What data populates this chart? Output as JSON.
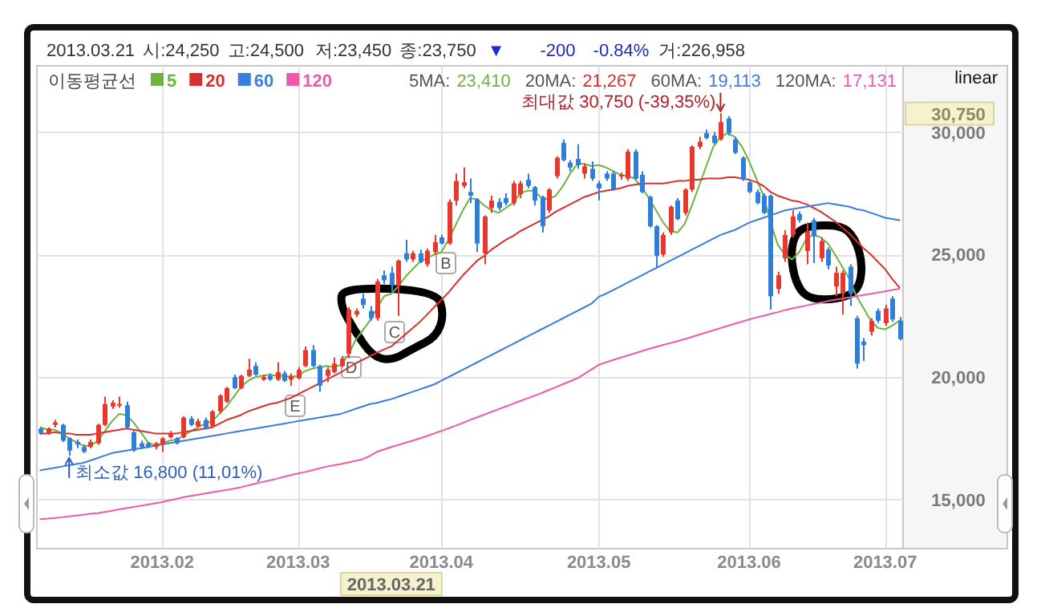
{
  "chart_data": {
    "type": "candlestick",
    "categories": [
      null,
      null,
      null,
      null,
      null,
      null,
      null,
      null,
      null,
      null,
      null,
      null,
      null,
      null,
      null,
      null,
      null,
      "2013.02",
      null,
      null,
      null,
      null,
      null,
      null,
      null,
      null,
      null,
      null,
      null,
      null,
      null,
      null,
      null,
      null,
      null,
      null,
      "2013.03",
      null,
      null,
      null,
      null,
      null,
      null,
      null,
      null,
      null,
      null,
      null,
      null,
      "2013.03.21",
      null,
      null,
      null,
      null,
      null,
      null,
      "2013.04",
      null,
      null,
      null,
      null,
      null,
      null,
      null,
      null,
      null,
      null,
      null,
      null,
      null,
      null,
      null,
      null,
      null,
      null,
      null,
      null,
      null,
      "2013.05",
      null,
      null,
      null,
      null,
      null,
      null,
      null,
      null,
      null,
      null,
      null,
      null,
      null,
      null,
      null,
      null,
      null,
      null,
      null,
      null,
      "2013.06",
      null,
      null,
      null,
      null,
      null,
      null,
      null,
      null,
      null,
      null,
      null,
      null,
      null,
      null,
      null,
      null,
      null,
      null,
      "2013.07",
      null,
      null
    ],
    "ohlc": [
      [
        17900,
        17950,
        17650,
        17700
      ],
      [
        17700,
        17950,
        17650,
        17900
      ],
      [
        18050,
        18250,
        17950,
        18150
      ],
      [
        18050,
        18100,
        17350,
        17400
      ],
      [
        17500,
        17550,
        16800,
        17000
      ],
      [
        17350,
        17450,
        17100,
        17250
      ],
      [
        17150,
        17250,
        16900,
        16950
      ],
      [
        17150,
        17450,
        17100,
        17350
      ],
      [
        17300,
        18100,
        17250,
        18050
      ],
      [
        18050,
        19200,
        18000,
        18900
      ],
      [
        18800,
        19050,
        18700,
        18950
      ],
      [
        18850,
        19200,
        18750,
        18900
      ],
      [
        18850,
        19000,
        17900,
        17950
      ],
      [
        17750,
        17800,
        16950,
        17000
      ],
      [
        17300,
        17400,
        17050,
        17150
      ],
      [
        17300,
        17350,
        17100,
        17150
      ],
      [
        17150,
        17350,
        17050,
        17300
      ],
      [
        17250,
        17550,
        16950,
        17500
      ],
      [
        17550,
        17800,
        17500,
        17700
      ],
      [
        17500,
        17550,
        17250,
        17300
      ],
      [
        17550,
        18400,
        17500,
        18350
      ],
      [
        18300,
        18400,
        18000,
        18050
      ],
      [
        18000,
        18300,
        17950,
        18200
      ],
      [
        18250,
        18350,
        17850,
        17900
      ],
      [
        18000,
        18650,
        17950,
        18600
      ],
      [
        18600,
        19300,
        18500,
        19250
      ],
      [
        19000,
        19600,
        18950,
        19550
      ],
      [
        20000,
        20100,
        19500,
        19550
      ],
      [
        19550,
        20100,
        19500,
        20050
      ],
      [
        20050,
        20750,
        20000,
        20300
      ],
      [
        20450,
        20600,
        20050,
        20100
      ],
      [
        19900,
        20100,
        19850,
        20000
      ],
      [
        20050,
        20150,
        19850,
        19900
      ],
      [
        19900,
        20600,
        19850,
        20200
      ],
      [
        20150,
        20250,
        19800,
        19850
      ],
      [
        19900,
        20150,
        19650,
        20050
      ],
      [
        19950,
        20400,
        19900,
        20300
      ],
      [
        20450,
        21250,
        20400,
        21100
      ],
      [
        21100,
        21300,
        20400,
        20450
      ],
      [
        20450,
        20500,
        19400,
        19650
      ],
      [
        20050,
        20400,
        19800,
        20300
      ],
      [
        20200,
        20800,
        20150,
        20550
      ],
      [
        20450,
        20850,
        20400,
        20750
      ],
      [
        20950,
        22850,
        20770,
        22750
      ],
      [
        22550,
        22800,
        22450,
        22700
      ],
      [
        23200,
        23400,
        22800,
        22950
      ],
      [
        22700,
        22900,
        22300,
        22400
      ],
      [
        22400,
        24000,
        22300,
        23900
      ],
      [
        24150,
        24350,
        23800,
        23950
      ],
      [
        24250,
        24500,
        23450,
        23750
      ],
      [
        23750,
        24800,
        22500,
        24750
      ],
      [
        25050,
        25600,
        24700,
        24800
      ],
      [
        24800,
        25150,
        24700,
        25050
      ],
      [
        25050,
        25200,
        24650,
        24700
      ],
      [
        24600,
        25250,
        24500,
        25150
      ],
      [
        25100,
        25800,
        25000,
        25500
      ],
      [
        25700,
        25800,
        25400,
        25450
      ],
      [
        25450,
        27250,
        25400,
        27150
      ],
      [
        27200,
        28300,
        27000,
        28000
      ],
      [
        27800,
        28550,
        27700,
        27950
      ],
      [
        27550,
        28100,
        27100,
        27400
      ],
      [
        27250,
        27300,
        25100,
        25450
      ],
      [
        25050,
        26600,
        24600,
        26550
      ],
      [
        26900,
        27400,
        26700,
        27200
      ],
      [
        27150,
        27300,
        26800,
        26900
      ],
      [
        27300,
        27500,
        27000,
        27100
      ],
      [
        27100,
        28000,
        27000,
        27900
      ],
      [
        27450,
        28000,
        27300,
        27900
      ],
      [
        28050,
        28300,
        27700,
        27800
      ],
      [
        27750,
        27800,
        27000,
        27200
      ],
      [
        27350,
        27400,
        25900,
        26150
      ],
      [
        26800,
        27700,
        26700,
        27650
      ],
      [
        28200,
        29000,
        28100,
        28950
      ],
      [
        29550,
        29700,
        28800,
        28850
      ],
      [
        28750,
        28850,
        28400,
        28550
      ],
      [
        28900,
        29500,
        28500,
        28650
      ],
      [
        28300,
        28700,
        28100,
        28600
      ],
      [
        28500,
        28800,
        28000,
        28100
      ],
      [
        27900,
        28000,
        27200,
        27700
      ],
      [
        28300,
        28400,
        28000,
        28100
      ],
      [
        28300,
        28400,
        27600,
        27650
      ],
      [
        28200,
        28350,
        28050,
        28250
      ],
      [
        28100,
        29300,
        28000,
        29200
      ],
      [
        29200,
        29300,
        28050,
        28100
      ],
      [
        28250,
        28400,
        27500,
        27550
      ],
      [
        27350,
        27400,
        26100,
        26150
      ],
      [
        26150,
        26200,
        24450,
        24950
      ],
      [
        25000,
        25900,
        24900,
        25800
      ],
      [
        25900,
        27000,
        25800,
        26950
      ],
      [
        27200,
        27300,
        26400,
        26450
      ],
      [
        26700,
        27700,
        26600,
        27650
      ],
      [
        27650,
        29450,
        27550,
        29400
      ],
      [
        29400,
        29800,
        29300,
        29600
      ],
      [
        29950,
        30100,
        29700,
        29750
      ],
      [
        29850,
        30000,
        29500,
        29550
      ],
      [
        29700,
        30750,
        29650,
        30400
      ],
      [
        30550,
        30650,
        29850,
        29950
      ],
      [
        29700,
        29800,
        29100,
        29150
      ],
      [
        28950,
        29000,
        28000,
        28050
      ],
      [
        27950,
        28000,
        27500,
        27550
      ],
      [
        27550,
        27650,
        27050,
        27100
      ],
      [
        27400,
        27500,
        26650,
        26700
      ],
      [
        27400,
        27450,
        22750,
        23300
      ],
      [
        23600,
        24300,
        23400,
        24150
      ],
      [
        24850,
        26000,
        24700,
        25800
      ],
      [
        25800,
        26800,
        25700,
        26550
      ],
      [
        26650,
        26750,
        26300,
        26400
      ],
      [
        25150,
        26300,
        24600,
        25950
      ],
      [
        26400,
        26500,
        24650,
        25750
      ],
      [
        24850,
        25700,
        24700,
        25550
      ],
      [
        25200,
        25300,
        24400,
        24550
      ],
      [
        23700,
        24500,
        23300,
        24250
      ],
      [
        23400,
        24350,
        22550,
        24250
      ],
      [
        24500,
        24600,
        22900,
        23400
      ],
      [
        22400,
        22500,
        20350,
        20550
      ],
      [
        21450,
        21600,
        20650,
        21300
      ],
      [
        21850,
        22400,
        21700,
        22300
      ],
      [
        22700,
        22800,
        22200,
        22300
      ],
      [
        22200,
        22950,
        22100,
        22800
      ],
      [
        23200,
        23300,
        22250,
        22350
      ],
      [
        22300,
        22450,
        21500,
        21550
      ]
    ],
    "colors": [
      "#2f7ed8",
      "#e8372c",
      "#e8372c",
      "#2f7ed8",
      "#2f7ed8",
      "#2f7ed8",
      "#2f7ed8",
      "#e8372c",
      "#e8372c",
      "#e8372c",
      "#e8372c",
      "#e8372c",
      "#2f7ed8",
      "#2f7ed8",
      "#2f7ed8",
      "#2f7ed8",
      "#e8372c",
      "#e8372c",
      "#e8372c",
      "#2f7ed8",
      "#e8372c",
      "#2f7ed8",
      "#e8372c",
      "#2f7ed8",
      "#e8372c",
      "#e8372c",
      "#e8372c",
      "#2f7ed8",
      "#e8372c",
      "#e8372c",
      "#2f7ed8",
      "#e8372c",
      "#2f7ed8",
      "#e8372c",
      "#2f7ed8",
      "#e8372c",
      "#e8372c",
      "#e8372c",
      "#2f7ed8",
      "#2f7ed8",
      "#e8372c",
      "#e8372c",
      "#e8372c",
      "#e8372c",
      "#e8372c",
      "#2f7ed8",
      "#2f7ed8",
      "#e8372c",
      "#2f7ed8",
      "#2f7ed8",
      "#e8372c",
      "#2f7ed8",
      "#e8372c",
      "#2f7ed8",
      "#e8372c",
      "#e8372c",
      "#2f7ed8",
      "#e8372c",
      "#e8372c",
      "#e8372c",
      "#2f7ed8",
      "#2f7ed8",
      "#e8372c",
      "#e8372c",
      "#2f7ed8",
      "#2f7ed8",
      "#e8372c",
      "#e8372c",
      "#2f7ed8",
      "#2f7ed8",
      "#2f7ed8",
      "#e8372c",
      "#e8372c",
      "#2f7ed8",
      "#2f7ed8",
      "#2f7ed8",
      "#e8372c",
      "#2f7ed8",
      "#2f7ed8",
      "#2f7ed8",
      "#2f7ed8",
      "#e8372c",
      "#e8372c",
      "#2f7ed8",
      "#2f7ed8",
      "#2f7ed8",
      "#2f7ed8",
      "#e8372c",
      "#e8372c",
      "#2f7ed8",
      "#e8372c",
      "#e8372c",
      "#e8372c",
      "#2f7ed8",
      "#2f7ed8",
      "#e8372c",
      "#2f7ed8",
      "#2f7ed8",
      "#2f7ed8",
      "#2f7ed8",
      "#2f7ed8",
      "#2f7ed8",
      "#2f7ed8",
      "#e8372c",
      "#e8372c",
      "#e8372c",
      "#2f7ed8",
      "#e8372c",
      "#2f7ed8",
      "#e8372c",
      "#2f7ed8",
      "#e8372c",
      "#e8372c",
      "#2f7ed8",
      "#2f7ed8",
      "#2f7ed8",
      "#e8372c",
      "#2f7ed8",
      "#e8372c",
      "#2f7ed8",
      "#2f7ed8"
    ],
    "series": [
      {
        "name": "5",
        "type": "line",
        "color": "#6db33f",
        "values": [
          17950,
          17850,
          17850,
          17700,
          17500,
          17350,
          17200,
          17200,
          17400,
          17800,
          18200,
          18500,
          18450,
          18150,
          17750,
          17350,
          17200,
          17300,
          17400,
          17450,
          17600,
          17800,
          17950,
          18100,
          18200,
          18500,
          18800,
          19200,
          19600,
          19850,
          20000,
          20050,
          20100,
          20050,
          20050,
          20000,
          20050,
          20250,
          20350,
          20400,
          20450,
          20400,
          20500,
          20900,
          21500,
          21900,
          22300,
          22800,
          23300,
          23400,
          23700,
          24100,
          24400,
          24700,
          24850,
          25000,
          25100,
          25600,
          26200,
          26800,
          27300,
          27250,
          27000,
          26800,
          26700,
          26900,
          27100,
          27500,
          27600,
          27600,
          27300,
          27250,
          27400,
          27800,
          28300,
          28700,
          28700,
          28600,
          28650,
          28550,
          28400,
          28250,
          28200,
          28100,
          27750,
          27300,
          26800,
          26300,
          25950,
          25900,
          26250,
          27000,
          27800,
          28600,
          29400,
          29800,
          29950,
          29800,
          29400,
          28800,
          28100,
          27400,
          26300,
          25400,
          25000,
          24800,
          25100,
          25650,
          25800,
          25700,
          25450,
          25000,
          24500,
          24000,
          23300,
          22800,
          22300,
          22000,
          21950,
          22100,
          22300
        ]
      },
      {
        "name": "20",
        "type": "line",
        "color": "#d9302f",
        "values": [
          17700,
          17700,
          17750,
          17700,
          17700,
          17650,
          17650,
          17650,
          17700,
          17750,
          17800,
          17850,
          17900,
          17850,
          17800,
          17750,
          17700,
          17700,
          17700,
          17700,
          17750,
          17800,
          17850,
          17900,
          17950,
          18100,
          18250,
          18350,
          18450,
          18600,
          18700,
          18800,
          18900,
          18950,
          19050,
          19150,
          19300,
          19450,
          19600,
          19750,
          19900,
          20050,
          20200,
          20380,
          20560,
          20700,
          20850,
          21000,
          21130,
          21250,
          21500,
          21750,
          22000,
          22250,
          22550,
          22850,
          23150,
          23450,
          23800,
          24150,
          24450,
          24750,
          24950,
          25200,
          25400,
          25600,
          25750,
          25950,
          26100,
          26250,
          26400,
          26550,
          26750,
          26900,
          27050,
          27200,
          27350,
          27450,
          27550,
          27600,
          27650,
          27700,
          27800,
          27850,
          27900,
          27900,
          27900,
          27900,
          27950,
          28000,
          28000,
          28050,
          28050,
          28100,
          28100,
          28100,
          28150,
          28150,
          28100,
          28050,
          27950,
          27800,
          27550,
          27400,
          27300,
          27200,
          27150,
          27050,
          26900,
          26750,
          26550,
          26350,
          26100,
          25850,
          25550,
          25250,
          25000,
          24700,
          24400,
          24000,
          23650
        ]
      },
      {
        "name": "60",
        "type": "line",
        "color": "#3b7ddd",
        "values": [
          16200,
          16250,
          16300,
          16350,
          16400,
          16450,
          16500,
          16600,
          16700,
          16800,
          16900,
          16950,
          17000,
          17050,
          17100,
          17150,
          17200,
          17250,
          17300,
          17350,
          17400,
          17450,
          17500,
          17550,
          17600,
          17650,
          17700,
          17750,
          17800,
          17850,
          17900,
          17950,
          18000,
          18050,
          18100,
          18150,
          18200,
          18250,
          18300,
          18350,
          18400,
          18450,
          18500,
          18600,
          18700,
          18800,
          18900,
          18950,
          19030,
          19100,
          19200,
          19300,
          19400,
          19500,
          19600,
          19700,
          19850,
          20000,
          20150,
          20300,
          20450,
          20600,
          20750,
          20900,
          21050,
          21200,
          21350,
          21500,
          21650,
          21800,
          21950,
          22100,
          22250,
          22400,
          22550,
          22700,
          22850,
          23000,
          23280,
          23400,
          23550,
          23700,
          23850,
          24000,
          24150,
          24300,
          24450,
          24600,
          24750,
          24900,
          25050,
          25200,
          25350,
          25500,
          25650,
          25800,
          25900,
          26000,
          26150,
          26300,
          26400,
          26500,
          26600,
          26700,
          26800,
          26850,
          26900,
          26950,
          27000,
          27050,
          27100,
          27050,
          27000,
          26950,
          26850,
          26800,
          26700,
          26600,
          26500,
          26450,
          26400
        ]
      },
      {
        "name": "120",
        "type": "line",
        "color": "#ef5aa8",
        "values": [
          14200,
          14230,
          14250,
          14280,
          14320,
          14350,
          14380,
          14420,
          14450,
          14500,
          14550,
          14600,
          14650,
          14700,
          14750,
          14800,
          14850,
          14900,
          14970,
          15030,
          15100,
          15150,
          15200,
          15250,
          15300,
          15350,
          15400,
          15450,
          15500,
          15580,
          15650,
          15720,
          15780,
          15850,
          15930,
          16000,
          16070,
          16130,
          16200,
          16280,
          16350,
          16400,
          16450,
          16520,
          16580,
          16650,
          16780,
          16950,
          17050,
          17150,
          17230,
          17320,
          17410,
          17500,
          17600,
          17700,
          17800,
          17910,
          18020,
          18130,
          18250,
          18360,
          18470,
          18580,
          18690,
          18800,
          18910,
          19020,
          19130,
          19240,
          19350,
          19470,
          19590,
          19710,
          19830,
          19950,
          20130,
          20320,
          20500,
          20600,
          20700,
          20790,
          20880,
          20970,
          21060,
          21150,
          21230,
          21310,
          21390,
          21470,
          21550,
          21640,
          21730,
          21820,
          21910,
          22000,
          22090,
          22180,
          22260,
          22350,
          22430,
          22500,
          22580,
          22650,
          22730,
          22800,
          22860,
          22920,
          22980,
          23040,
          23100,
          23150,
          23200,
          23250,
          23300,
          23350,
          23400,
          23450,
          23500,
          23550,
          23600
        ]
      }
    ],
    "legend": "top left",
    "legend_title": "이동평균선",
    "ylim": [
      13000,
      32700
    ],
    "yticks": [
      {
        "value": 15000,
        "label": "15,000"
      },
      {
        "value": 20000,
        "label": "20,000"
      },
      {
        "value": 25000,
        "label": "25,000"
      },
      {
        "value": 30000,
        "label": "30,000"
      }
    ],
    "grid": true,
    "annotations": [
      "2013.03.21",
      "시:24,250",
      "고:24,500",
      "저:23,450",
      "종:23,750",
      "▼",
      "-200",
      "-0.84%",
      "거:226,958",
      "5MA:",
      "23,410",
      "20MA:",
      "21,267",
      "60MA:",
      "19,113",
      "120MA:",
      "17,131",
      "linear",
      "30,750",
      "최대값 30,750 (-39,35%)",
      "최소값 16,800 (11,01%)",
      "B",
      "C",
      "D",
      "E"
    ]
  }
}
